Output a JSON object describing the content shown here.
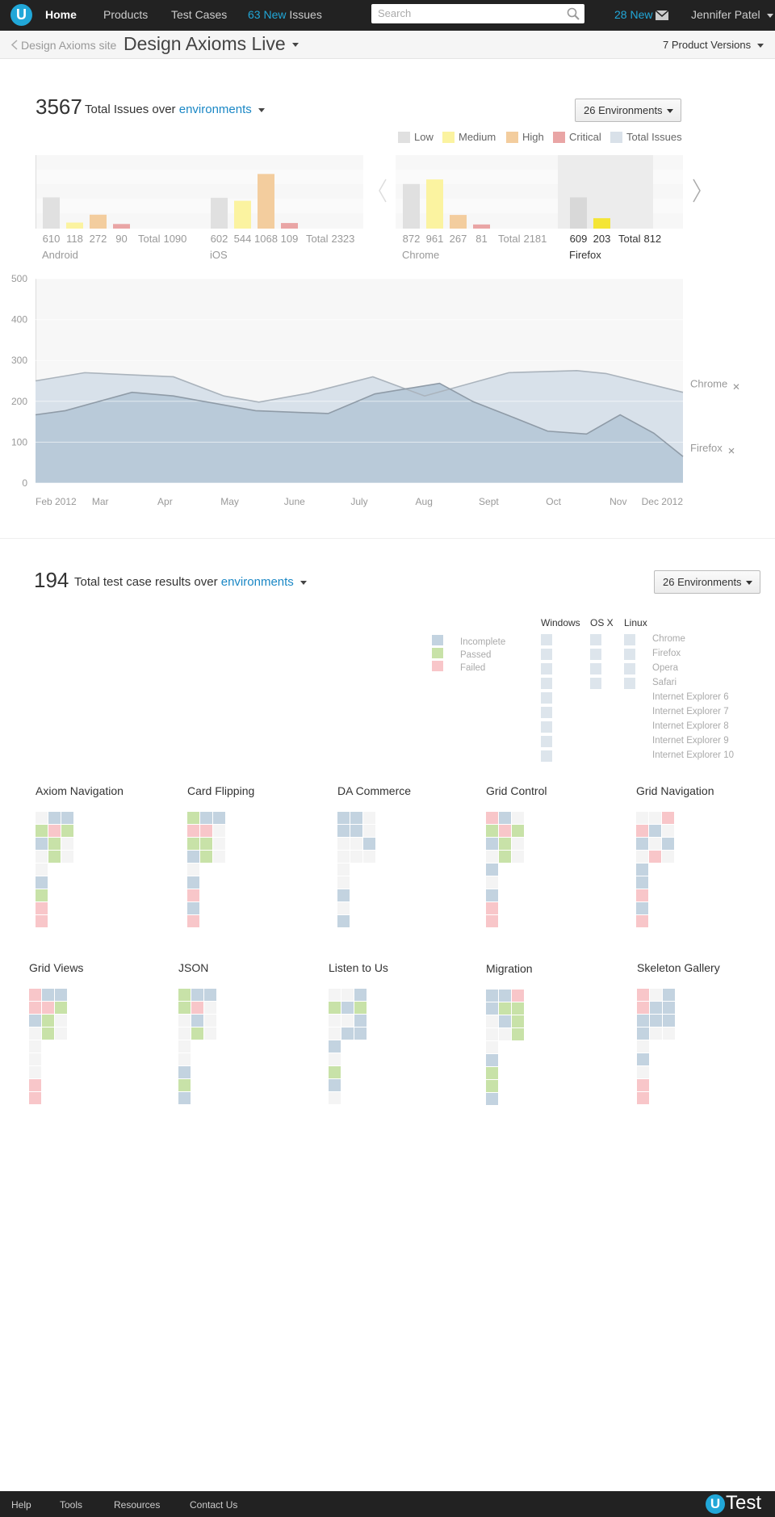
{
  "nav": {
    "logo": "U",
    "items": [
      "Home",
      "Products",
      "Test Cases"
    ],
    "issues_count": "63 New",
    "issues_label": "Issues",
    "search": "Search",
    "messages": "28 New",
    "user": "Jennifer Patel"
  },
  "header": {
    "back": "Design Axioms site",
    "title": "Design Axioms Live",
    "versions": "7 Product Versions"
  },
  "issues": {
    "total": 3567,
    "label": "Total Issues over",
    "link": "environments",
    "dropdown": "26 Environments",
    "legend": [
      {
        "name": "Low",
        "color": "#e0e0e0"
      },
      {
        "name": "Medium",
        "color": "#fbf3a0"
      },
      {
        "name": "High",
        "color": "#f3cd9e"
      },
      {
        "name": "Critical",
        "color": "#e9a5a5"
      },
      {
        "name": "Total Issues",
        "color": "#d9e1e9"
      }
    ],
    "bars": {
      "ylim": [
        0,
        1200
      ],
      "total_label": "Total",
      "groups": [
        {
          "name": "Android",
          "values": [
            610,
            118,
            272,
            90
          ],
          "total": 1090
        },
        {
          "name": "iOS",
          "values": [
            602,
            544,
            1068,
            109
          ],
          "total": 2323
        },
        {
          "name": "Chrome",
          "values": [
            872,
            961,
            267,
            81
          ],
          "total": 2181
        },
        {
          "name": "Firefox",
          "values": [
            609,
            203
          ],
          "total": 812,
          "selected": true
        }
      ]
    },
    "area": {
      "type": "area",
      "ylim": [
        0,
        500
      ],
      "yticks": [
        0,
        100,
        200,
        300,
        400,
        500
      ],
      "xlim": [
        2,
        12
      ],
      "xticks": [
        {
          "value": 2,
          "label": "Feb 2012"
        },
        {
          "value": 3,
          "label": "Mar"
        },
        {
          "value": 4,
          "label": "Apr"
        },
        {
          "value": 5,
          "label": "May"
        },
        {
          "value": 6,
          "label": "June"
        },
        {
          "value": 7,
          "label": "July"
        },
        {
          "value": 8,
          "label": "Aug"
        },
        {
          "value": 9,
          "label": "Sept"
        },
        {
          "value": 10,
          "label": "Oct"
        },
        {
          "value": 11,
          "label": "Nov"
        },
        {
          "value": 12,
          "label": "Dec 2012"
        }
      ],
      "series": [
        {
          "name": "Chrome",
          "color": "#d8e1ea",
          "x": [
            2,
            2.76,
            4.13,
            4.91,
            5.45,
            6.22,
            7.21,
            8.01,
            9.31,
            10.36,
            10.81,
            12
          ],
          "values": [
            250,
            270,
            260,
            213,
            198,
            220,
            260,
            213,
            270,
            275,
            268,
            222
          ]
        },
        {
          "name": "Firefox",
          "color": "#b9cad9",
          "x": [
            2,
            2.46,
            3.49,
            4.13,
            5.4,
            6.52,
            7.24,
            8.24,
            8.76,
            9.31,
            9.91,
            10.51,
            11.03,
            11.55,
            12
          ],
          "values": [
            167,
            177,
            222,
            213,
            177,
            170,
            218,
            244,
            199,
            165,
            127,
            120,
            167,
            122,
            65
          ]
        }
      ]
    }
  },
  "tests": {
    "total": 194,
    "label": "Total test case results over",
    "link": "environments",
    "dropdown": "26 Environments",
    "legend": [
      {
        "name": "Incomplete",
        "color": "#c3d3e0"
      },
      {
        "name": "Passed",
        "color": "#c8e2a8"
      },
      {
        "name": "Failed",
        "color": "#f8c6c9"
      }
    ],
    "os": [
      "Windows",
      "OS X",
      "Linux"
    ],
    "browsers": [
      "Chrome",
      "Firefox",
      "Opera",
      "Safari",
      "Internet Explorer 6",
      "Internet Explorer 7",
      "Internet Explorer 8",
      "Internet Explorer 9",
      "Internet Explorer 10"
    ],
    "projects": [
      "Axiom Navigation",
      "Card Flipping",
      "DA Commerce",
      "Grid Control",
      "Grid Navigation",
      "Grid Views",
      "JSON",
      "Listen to Us",
      "Migration",
      "Skeleton Gallery"
    ]
  },
  "footer": {
    "items": [
      "Help",
      "Tools",
      "Resources",
      "Contact Us"
    ],
    "logo_mark": "U",
    "logo_text": "Test"
  }
}
